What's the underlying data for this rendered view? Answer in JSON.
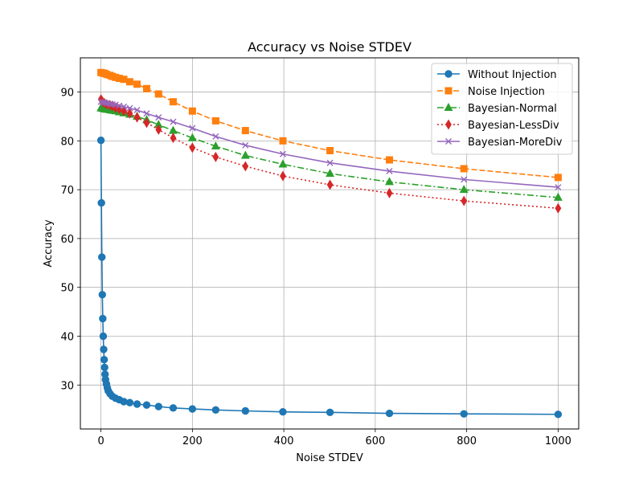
{
  "chart_data": {
    "type": "line",
    "title": "Accuracy vs Noise STDEV",
    "xlabel": "Noise STDEV",
    "ylabel": "Accuracy",
    "xlim": [
      -45,
      1045
    ],
    "ylim": [
      21,
      97
    ],
    "xticks": [
      0,
      200,
      400,
      600,
      800,
      1000
    ],
    "yticks": [
      30,
      40,
      50,
      60,
      70,
      80,
      90
    ],
    "grid": true,
    "legend_position": "top-right",
    "series": [
      {
        "name": "Without Injection",
        "color": "#1f77b4",
        "marker": "circle",
        "linestyle": "solid",
        "x": [
          0,
          1,
          2,
          3,
          4,
          5,
          6,
          7,
          8,
          9,
          10,
          12,
          14,
          16,
          20,
          25,
          32,
          40,
          50,
          63,
          79,
          100,
          126,
          158,
          200,
          251,
          316,
          398,
          501,
          631,
          794,
          1000
        ],
        "y": [
          80.1,
          67.3,
          56.2,
          48.5,
          43.6,
          40.0,
          37.3,
          35.2,
          33.6,
          32.2,
          31.1,
          30.2,
          29.4,
          28.8,
          28.2,
          27.7,
          27.3,
          27.0,
          26.6,
          26.4,
          26.1,
          25.9,
          25.6,
          25.3,
          25.1,
          24.9,
          24.7,
          24.5,
          24.4,
          24.2,
          24.1,
          24.0
        ]
      },
      {
        "name": "Noise Injection",
        "color": "#ff7f0e",
        "marker": "square",
        "linestyle": "dashed",
        "x": [
          0,
          4,
          8,
          13,
          20,
          25,
          32,
          40,
          50,
          63,
          79,
          100,
          126,
          158,
          200,
          251,
          316,
          398,
          501,
          631,
          794,
          1000
        ],
        "y": [
          94.0,
          93.9,
          93.8,
          93.6,
          93.4,
          93.2,
          93.0,
          92.8,
          92.6,
          92.1,
          91.6,
          90.7,
          89.6,
          88.0,
          86.1,
          84.1,
          82.1,
          80.0,
          78.0,
          76.1,
          74.3,
          72.5
        ]
      },
      {
        "name": "Bayesian-Normal",
        "color": "#2ca02c",
        "marker": "triangle",
        "linestyle": "dashdot",
        "x": [
          0,
          4,
          8,
          13,
          20,
          25,
          32,
          40,
          50,
          63,
          79,
          100,
          126,
          158,
          200,
          251,
          316,
          398,
          501,
          631,
          794,
          1000
        ],
        "y": [
          86.7,
          86.6,
          86.5,
          86.4,
          86.3,
          86.2,
          86.1,
          85.9,
          85.7,
          85.4,
          85.0,
          84.3,
          83.3,
          82.1,
          80.6,
          78.9,
          77.0,
          75.2,
          73.3,
          71.6,
          70.0,
          68.4
        ]
      },
      {
        "name": "Bayesian-LessDiv",
        "color": "#d62728",
        "marker": "diamond",
        "linestyle": "dotted",
        "x": [
          0,
          4,
          8,
          13,
          20,
          25,
          32,
          40,
          50,
          63,
          79,
          100,
          126,
          158,
          200,
          251,
          316,
          398,
          501,
          631,
          794,
          1000
        ],
        "y": [
          88.5,
          88.0,
          87.7,
          87.5,
          87.3,
          87.1,
          86.8,
          86.5,
          86.1,
          85.6,
          84.8,
          83.7,
          82.3,
          80.6,
          78.6,
          76.7,
          74.8,
          72.8,
          71.0,
          69.3,
          67.7,
          66.2
        ]
      },
      {
        "name": "Bayesian-MoreDiv",
        "color": "#9467bd",
        "marker": "x",
        "linestyle": "solid",
        "x": [
          0,
          4,
          8,
          13,
          20,
          25,
          32,
          40,
          50,
          63,
          79,
          100,
          126,
          158,
          200,
          251,
          316,
          398,
          501,
          631,
          794,
          1000
        ],
        "y": [
          88.0,
          87.9,
          87.8,
          87.7,
          87.6,
          87.5,
          87.4,
          87.2,
          87.0,
          86.7,
          86.3,
          85.6,
          84.8,
          83.9,
          82.6,
          80.9,
          79.1,
          77.3,
          75.5,
          73.8,
          72.1,
          70.5
        ]
      }
    ]
  }
}
